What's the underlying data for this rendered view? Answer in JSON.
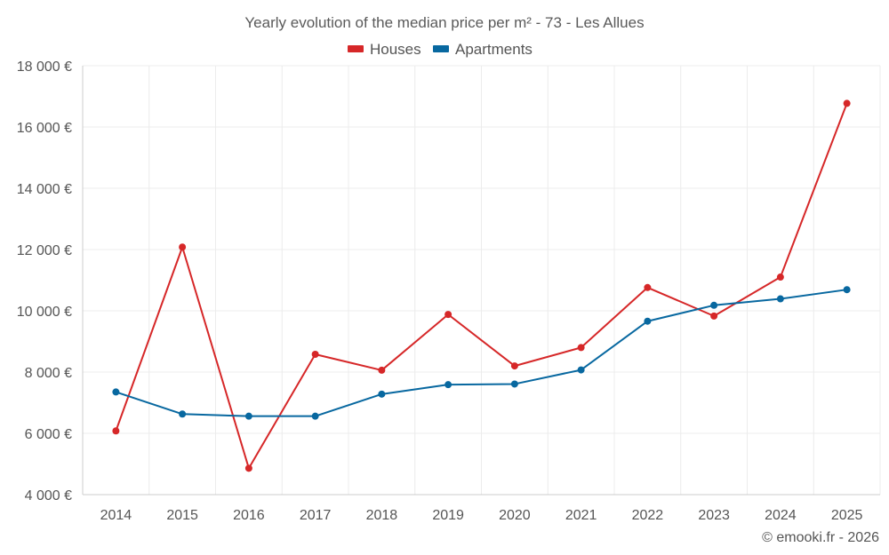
{
  "chart_data": {
    "type": "line",
    "title": "Yearly evolution of the median price per m² - 73 - Les Allues",
    "categories": [
      "2014",
      "2015",
      "2016",
      "2017",
      "2018",
      "2019",
      "2020",
      "2021",
      "2022",
      "2023",
      "2024",
      "2025"
    ],
    "series": [
      {
        "name": "Houses",
        "color": "#d62728",
        "values": [
          6080,
          12080,
          4860,
          8580,
          8060,
          9880,
          8200,
          8800,
          10760,
          9830,
          11100,
          16770
        ]
      },
      {
        "name": "Apartments",
        "color": "#0868a0",
        "values": [
          7350,
          6630,
          6560,
          6560,
          7280,
          7590,
          7610,
          8070,
          9660,
          10180,
          10390,
          10690
        ]
      }
    ],
    "y_ticks": [
      "4 000 €",
      "6 000 €",
      "8 000 €",
      "10 000 €",
      "12 000 €",
      "14 000 €",
      "16 000 €",
      "18 000 €"
    ],
    "y_tick_values": [
      4000,
      6000,
      8000,
      10000,
      12000,
      14000,
      16000,
      18000
    ],
    "ylim": [
      4000,
      18000
    ],
    "xlabel": "",
    "ylabel": "",
    "legend_position": "top-center",
    "grid": true
  },
  "credit": "© emooki.fr - 2026"
}
